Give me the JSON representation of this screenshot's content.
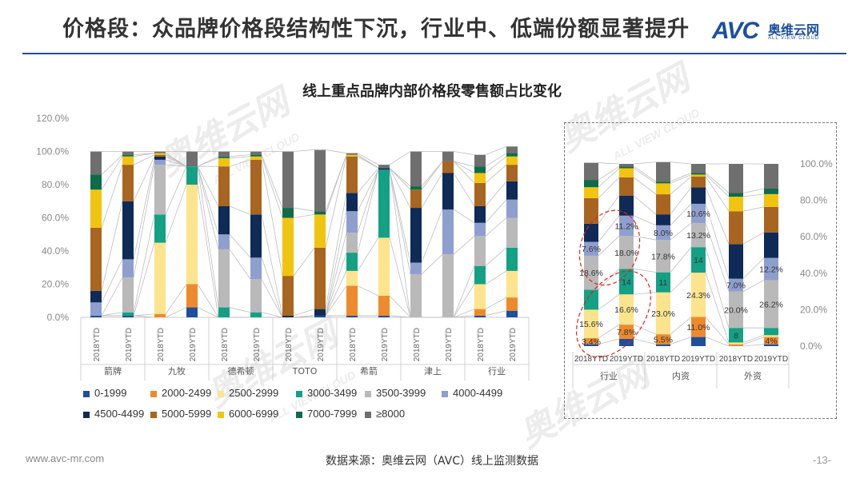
{
  "header": {
    "title": "价格段：众品牌价格段结构性下沉，行业中、低端份额显著提升",
    "logo_text": "AVC",
    "logo_cn": "奥维云网",
    "logo_en": "ALL VIEW CLOUD"
  },
  "watermark": "奥维云网",
  "watermark_en": "ALL VIEW CLOUD",
  "footer": {
    "url": "www.avc-mr.com",
    "source": "数据来源：奥维云网（AVC）线上监测数据",
    "page": "-13-"
  },
  "colors": {
    "title_rule": "#1f4e9a",
    "annotation_ellipse": "#d9261c",
    "connector": "#bdbdbd"
  },
  "chart_data": [
    {
      "type": "bar",
      "stacked": true,
      "title": "线上重点品牌内部价格段零售额占比变化",
      "ylim": [
        0,
        120
      ],
      "yticks": [
        "0.0%",
        "20.0%",
        "40.0%",
        "60.0%",
        "80.0%",
        "100.0%",
        "120.0%"
      ],
      "y_axis_position": "left",
      "categories": [
        "2018YTD",
        "2019YTD",
        "2018YTD",
        "2019YTD",
        "2018YTD",
        "2019YTD",
        "2018YTD",
        "2019YTD",
        "2018YTD",
        "2019YTD",
        "2018YTD",
        "2019YTD",
        "2018YTD",
        "2019YTD"
      ],
      "groups": [
        "箭牌",
        "九牧",
        "德希顿",
        "TOTO",
        "希箭",
        "津上",
        "行业"
      ],
      "legend_position": "bottom",
      "series": [
        {
          "name": "0-1999",
          "color": "#1f4e9a",
          "values": [
            1,
            1,
            0,
            6,
            0,
            0,
            0,
            1,
            1,
            1,
            0,
            0,
            1,
            4
          ]
        },
        {
          "name": "2000-2499",
          "color": "#ee8a2c",
          "values": [
            0,
            0,
            2,
            14,
            0,
            0,
            0,
            0,
            18,
            12,
            0,
            0,
            4,
            8
          ]
        },
        {
          "name": "2500-2999",
          "color": "#fbe48c",
          "values": [
            0,
            0,
            43,
            60,
            0,
            0,
            0,
            0,
            9,
            35,
            0,
            0,
            15,
            16
          ]
        },
        {
          "name": "3000-3499",
          "color": "#14a084",
          "values": [
            0,
            2,
            17,
            11,
            6,
            3,
            0,
            0,
            11,
            41,
            0,
            0,
            11,
            14
          ]
        },
        {
          "name": "3500-3999",
          "color": "#b9b9b9",
          "values": [
            0,
            21,
            30,
            0,
            35,
            20,
            0,
            0,
            12,
            0,
            26,
            38,
            18,
            18
          ]
        },
        {
          "name": "4000-4499",
          "color": "#8e9fcf",
          "values": [
            8,
            11,
            3,
            0,
            9,
            13,
            0,
            0,
            13,
            0,
            7,
            27,
            8,
            11
          ]
        },
        {
          "name": "4500-4499",
          "color": "#0f2a56",
          "values": [
            7,
            35,
            2,
            0,
            17,
            26,
            1,
            4,
            11,
            1,
            33,
            22,
            10,
            11
          ]
        },
        {
          "name": "5000-5999",
          "color": "#a8651f",
          "values": [
            38,
            22,
            1,
            0,
            24,
            33,
            24,
            37,
            22,
            0,
            11,
            7,
            14,
            10
          ]
        },
        {
          "name": "6000-6999",
          "color": "#f1c40f",
          "values": [
            23,
            5,
            1,
            0,
            5,
            2,
            35,
            20,
            1,
            0,
            0,
            0,
            6,
            5
          ]
        },
        {
          "name": "7000-7999",
          "color": "#0c6b4a",
          "values": [
            9,
            1,
            0,
            0,
            1,
            1,
            6,
            2,
            0,
            0,
            2,
            0,
            4,
            2
          ]
        },
        {
          "name": "≥8000",
          "color": "#6f6f6f",
          "values": [
            14,
            2,
            1,
            9,
            3,
            2,
            34,
            37,
            1,
            2,
            21,
            6,
            7,
            4
          ]
        }
      ]
    },
    {
      "type": "bar",
      "stacked": true,
      "ylim": [
        0,
        100
      ],
      "yticks": [
        "0.0%",
        "20.0%",
        "40.0%",
        "60.0%",
        "80.0%",
        "100.0%"
      ],
      "y_axis_position": "right",
      "categories": [
        "2018YTD",
        "2019YTD",
        "2018YTD",
        "2019YTD",
        "2018YTD",
        "2019YTD"
      ],
      "groups": [
        "行业",
        "内资",
        "外资"
      ],
      "series": [
        {
          "name": "0-1999",
          "values": [
            1,
            4,
            1,
            5,
            0,
            1
          ]
        },
        {
          "name": "2000-2499",
          "values": [
            3.4,
            7.8,
            5.5,
            11.0,
            1,
            4
          ]
        },
        {
          "name": "2500-2999",
          "values": [
            15.6,
            16.6,
            23.0,
            24.3,
            1,
            1
          ]
        },
        {
          "name": "3000-3499",
          "values": [
            11,
            14,
            11,
            14,
            8,
            4
          ]
        },
        {
          "name": "3500-3999",
          "values": [
            18.6,
            18.0,
            17.8,
            13.2,
            20.0,
            26.2
          ]
        },
        {
          "name": "4000-4499",
          "values": [
            7.6,
            11.2,
            8.0,
            10.6,
            7.0,
            12.2
          ]
        },
        {
          "name": "4500-4499",
          "values": [
            10,
            11,
            6,
            9,
            19,
            14
          ]
        },
        {
          "name": "5000-5999",
          "values": [
            14,
            10,
            11,
            6,
            18,
            14
          ]
        },
        {
          "name": "6000-6999",
          "values": [
            6,
            5,
            6,
            1,
            8,
            7
          ]
        },
        {
          "name": "7000-7999",
          "values": [
            4,
            1,
            1,
            1,
            2,
            3
          ]
        },
        {
          "name": "≥8000",
          "values": [
            9.4,
            1.4,
            10.7,
            4.9,
            16,
            13.6
          ]
        }
      ],
      "data_labels": [
        [
          "3.4%",
          "15.6%",
          "",
          "18.6%",
          "7.6%"
        ],
        [
          "7.8%",
          "16.6%",
          "14",
          "18.0%",
          "11.2%"
        ],
        [
          "5.5%",
          "23.0%",
          "11",
          "17.8%",
          "8.0%"
        ],
        [
          "11.0%",
          "24.3%",
          "14",
          "13.2%",
          "10.6%"
        ],
        [
          "",
          "",
          "8",
          "20.0%",
          "7.0%"
        ],
        [
          "4%",
          "",
          "",
          "26.2%",
          "12.2%"
        ]
      ]
    }
  ]
}
